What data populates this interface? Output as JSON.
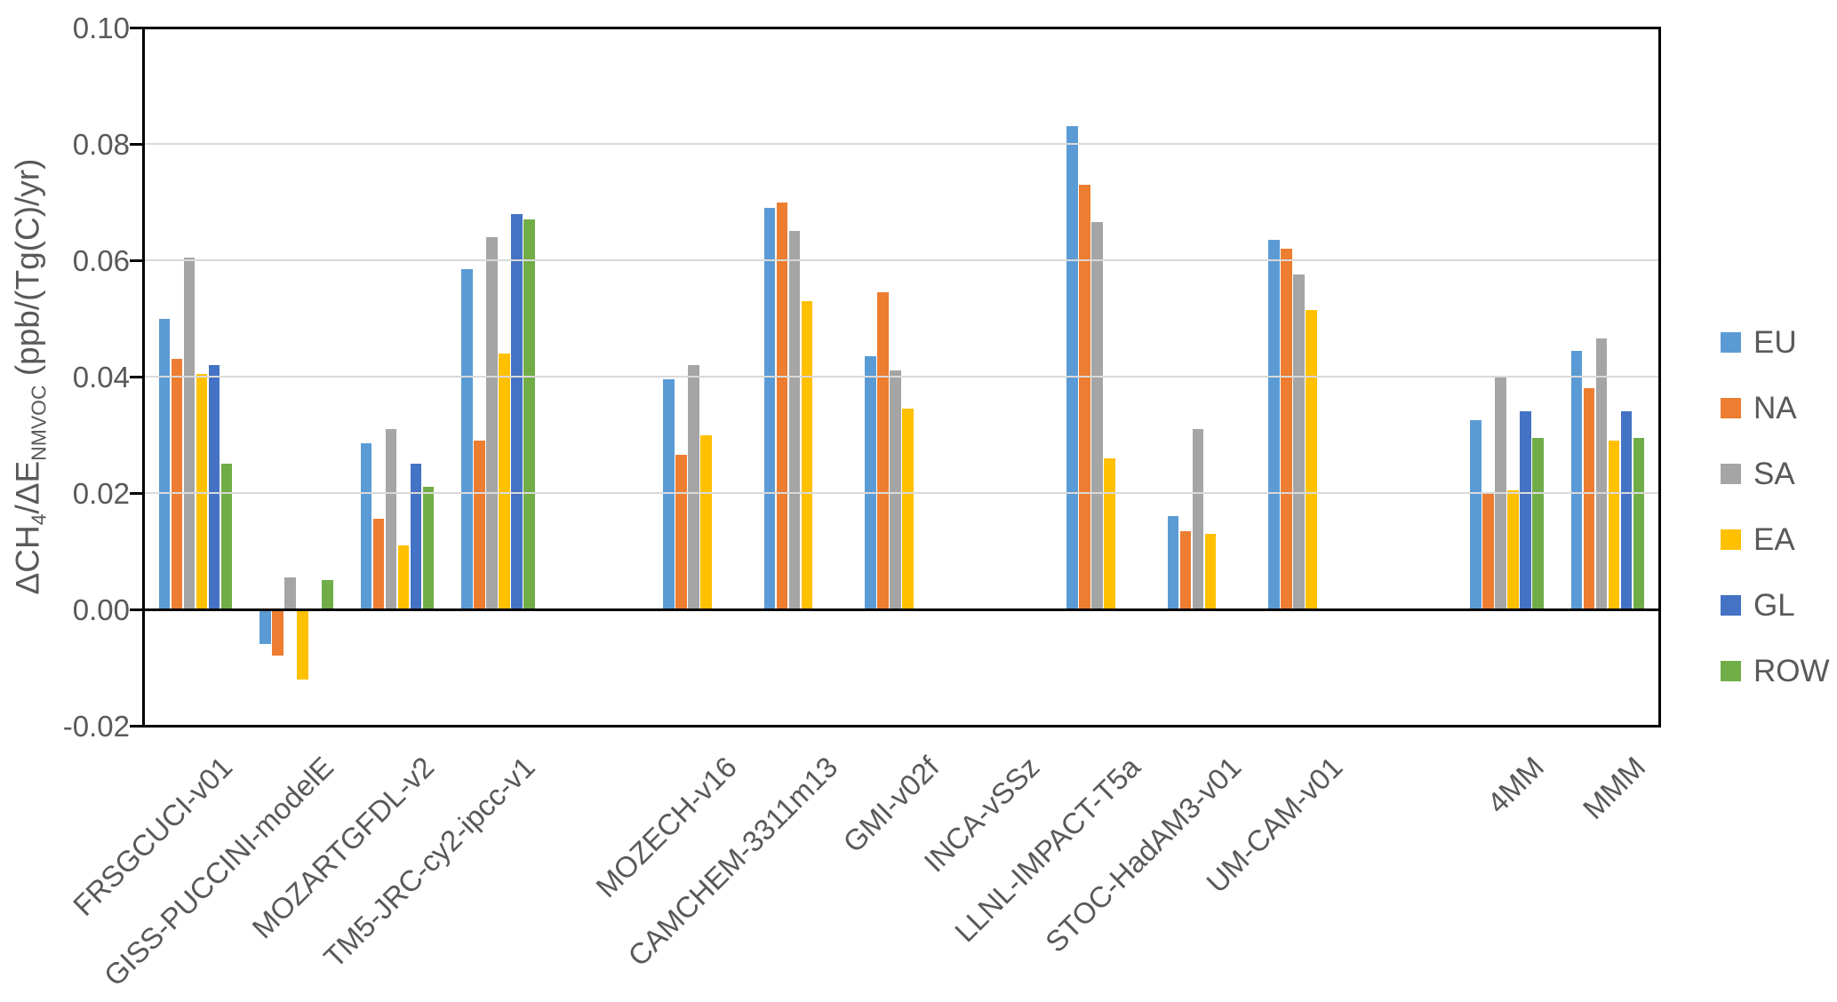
{
  "chart_data": {
    "type": "bar",
    "title": "",
    "ylabel_parts": [
      {
        "text": "ΔCH"
      },
      {
        "sub": "4"
      },
      {
        "text": "/ΔE"
      },
      {
        "sub": "NMVOC"
      },
      {
        "text": " (ppb/(Tg(C)/yr)"
      }
    ],
    "y_axis": {
      "min": -0.02,
      "max": 0.1,
      "ticks": [
        {
          "value": 0.1,
          "label": "0.10"
        },
        {
          "value": 0.08,
          "label": "0.08"
        },
        {
          "value": 0.06,
          "label": "0.06"
        },
        {
          "value": 0.04,
          "label": "0.04"
        },
        {
          "value": 0.02,
          "label": "0.02"
        },
        {
          "value": 0.0,
          "label": "0.00"
        },
        {
          "value": -0.02,
          "label": "-0.02"
        }
      ],
      "grid": true
    },
    "legend_position": "right",
    "series": [
      {
        "name": "EU",
        "color": "#5B9BD5"
      },
      {
        "name": "NA",
        "color": "#ED7D31"
      },
      {
        "name": "SA",
        "color": "#A5A5A5"
      },
      {
        "name": "EA",
        "color": "#FFC000"
      },
      {
        "name": "GL",
        "color": "#4472C4"
      },
      {
        "name": "ROW",
        "color": "#70AD47"
      }
    ],
    "categories": [
      "FRSGCUCI-v01",
      "GISS-PUCCINI-modelE",
      "MOZARTGFDL-v2",
      "TM5-JRC-cy2-ipcc-v1",
      "MOZECH-v16",
      "CAMCHEM-3311m13",
      "GMI-v02f",
      "INCA-vSSz",
      "LLNL-IMPACT-T5a",
      "STOC-HadAM3-v01",
      "UM-CAM-v01",
      "4MM",
      "MMM"
    ],
    "layout": {
      "total_slots": 15,
      "note": "slots 4 and 12 are empty spacer categories"
    },
    "models": [
      {
        "label": "FRSGCUCI-v01",
        "slot": 0,
        "values": [
          0.05,
          0.043,
          0.0605,
          0.0405,
          0.042,
          0.025
        ]
      },
      {
        "label": "GISS-PUCCINI-modelE",
        "slot": 1,
        "values": [
          -0.006,
          -0.008,
          0.0055,
          -0.012,
          null,
          0.005
        ]
      },
      {
        "label": "MOZARTGFDL-v2",
        "slot": 2,
        "values": [
          0.0285,
          0.0155,
          0.031,
          0.011,
          0.025,
          0.021
        ]
      },
      {
        "label": "TM5-JRC-cy2-ipcc-v1",
        "slot": 3,
        "values": [
          0.0585,
          0.029,
          0.064,
          0.044,
          0.068,
          0.067
        ]
      },
      {
        "label": "MOZECH-v16",
        "slot": 5,
        "values": [
          0.0395,
          0.0265,
          0.042,
          0.03,
          null,
          null
        ]
      },
      {
        "label": "CAMCHEM-3311m13",
        "slot": 6,
        "values": [
          0.069,
          0.07,
          0.065,
          0.053,
          null,
          null
        ]
      },
      {
        "label": "GMI-v02f",
        "slot": 7,
        "values": [
          0.0435,
          0.0545,
          0.041,
          0.0345,
          null,
          null
        ]
      },
      {
        "label": "INCA-vSSz",
        "slot": 8,
        "values": [
          null,
          null,
          null,
          null,
          null,
          null
        ]
      },
      {
        "label": "LLNL-IMPACT-T5a",
        "slot": 9,
        "values": [
          0.083,
          0.073,
          0.0665,
          0.026,
          null,
          null
        ]
      },
      {
        "label": "STOC-HadAM3-v01",
        "slot": 10,
        "values": [
          0.016,
          0.0135,
          0.031,
          0.013,
          null,
          null
        ]
      },
      {
        "label": "UM-CAM-v01",
        "slot": 11,
        "values": [
          0.0635,
          0.062,
          0.0575,
          0.0515,
          null,
          null
        ]
      },
      {
        "label": "4MM",
        "slot": 13,
        "values": [
          0.0325,
          0.02,
          0.04,
          0.0205,
          0.034,
          0.0295
        ]
      },
      {
        "label": "MMM",
        "slot": 14,
        "values": [
          0.0445,
          0.038,
          0.0465,
          0.029,
          0.034,
          0.0295
        ]
      }
    ]
  }
}
